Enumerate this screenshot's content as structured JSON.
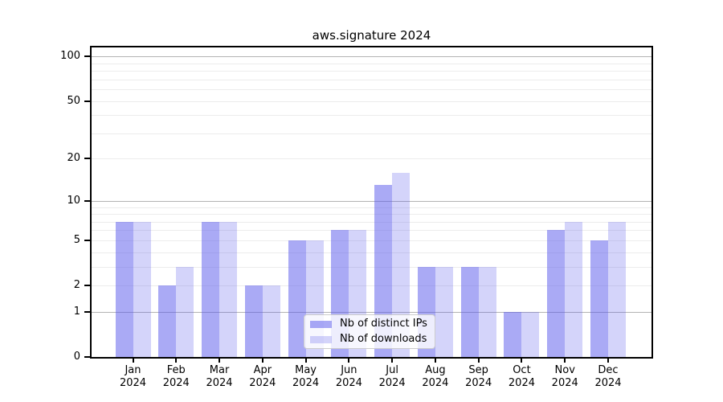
{
  "title": "aws.signature 2024",
  "chart_data": {
    "type": "bar",
    "scale": "log1p",
    "title": "aws.signature 2024",
    "xlabel": "",
    "ylabel": "",
    "grid": true,
    "legend_position": "bottom-center",
    "categories": [
      "Jan",
      "Feb",
      "Mar",
      "Apr",
      "May",
      "Jun",
      "Jul",
      "Aug",
      "Sep",
      "Oct",
      "Nov",
      "Dec"
    ],
    "year_label": "2024",
    "series": [
      {
        "name": "Nb of distinct IPs",
        "color": "rgba(85,85,235,0.5)",
        "values": [
          7,
          2,
          7,
          2,
          5,
          6,
          13,
          3,
          3,
          1,
          6,
          5
        ]
      },
      {
        "name": "Nb of downloads",
        "color": "rgba(85,85,235,0.25)",
        "values": [
          7,
          3,
          7,
          2,
          5,
          6,
          16,
          3,
          3,
          1,
          7,
          7
        ]
      }
    ],
    "y_ticks": [
      100,
      50,
      20,
      10,
      5,
      2,
      1,
      0
    ],
    "y_tick_labels": [
      "100",
      "50",
      "20",
      "10",
      "5",
      "2",
      "1",
      "0"
    ],
    "major_gridlines": [
      1,
      10,
      100
    ],
    "minor_gridlines": [
      2,
      3,
      4,
      5,
      6,
      7,
      8,
      9,
      20,
      30,
      40,
      50,
      60,
      70,
      80,
      90
    ],
    "ylim": [
      0,
      115
    ],
    "colors": {
      "bar_base": "#5555EB",
      "major_grid": "#b3b3b3",
      "minor_grid": "#ececec",
      "axis": "#000000",
      "legend_border": "#cccccc"
    }
  }
}
